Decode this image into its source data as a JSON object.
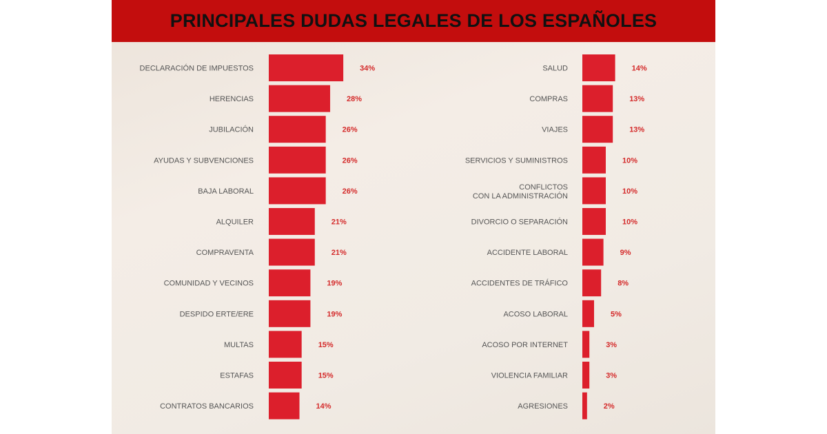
{
  "title": "PRINCIPALES DUDAS LEGALES DE LOS ESPAÑOLES",
  "colors": {
    "title_bar": "#c30d0d",
    "bar": "#dc1f2c",
    "value_text": "#d42a2a",
    "label_text": "#555555"
  },
  "chart_data": [
    {
      "type": "bar",
      "orientation": "horizontal",
      "title": "",
      "xlabel": "",
      "ylabel": "",
      "grid": false,
      "unit": "%",
      "categories": [
        "DECLARACIÓN DE IMPUESTOS",
        "HERENCIAS",
        "JUBILACIÓN",
        "AYUDAS Y SUBVENCIONES",
        "BAJA LABORAL",
        "ALQUILER",
        "COMPRAVENTA",
        "COMUNIDAD Y VECINOS",
        "DESPIDO ERTE/ERE",
        "MULTAS",
        "ESTAFAS",
        "CONTRATOS BANCARIOS"
      ],
      "values": [
        34,
        28,
        26,
        26,
        26,
        21,
        21,
        19,
        19,
        15,
        15,
        14
      ],
      "value_labels": [
        "34%",
        "28%",
        "26%",
        "26%",
        "26%",
        "21%",
        "21%",
        "19%",
        "19%",
        "15%",
        "15%",
        "14%"
      ]
    },
    {
      "type": "bar",
      "orientation": "horizontal",
      "title": "",
      "xlabel": "",
      "ylabel": "",
      "grid": false,
      "unit": "%",
      "categories": [
        "SALUD",
        "COMPRAS",
        "VIAJES",
        "SERVICIOS Y SUMINISTROS",
        "CONFLICTOS\nCON LA ADMINISTRACIÓN",
        "DIVORCIO O SEPARACIÓN",
        "ACCIDENTE LABORAL",
        "ACCIDENTES DE TRÁFICO",
        "ACOSO LABORAL",
        "ACOSO POR INTERNET",
        "VIOLENCIA FAMILIAR",
        "AGRESIONES"
      ],
      "values": [
        14,
        13,
        13,
        10,
        10,
        10,
        9,
        8,
        5,
        3,
        3,
        2
      ],
      "value_labels": [
        "14%",
        "13%",
        "13%",
        "10%",
        "10%",
        "10%",
        "9%",
        "8%",
        "5%",
        "3%",
        "3%",
        "2%"
      ]
    }
  ]
}
